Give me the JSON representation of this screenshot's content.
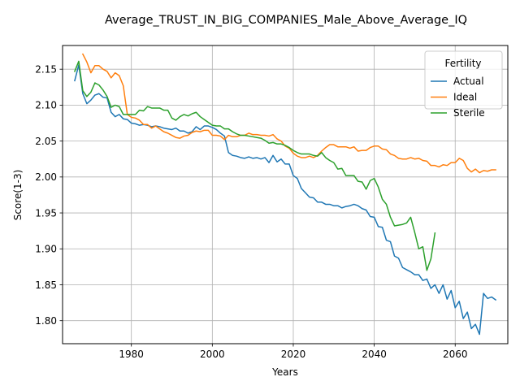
{
  "chart_data": {
    "type": "line",
    "title": "Average_TRUST_IN_BIG_COMPANIES_Male_Above_Average_IQ",
    "xlabel": "Years",
    "ylabel": "Score(1-3)",
    "xlim": [
      1963,
      2073
    ],
    "ylim": [
      1.768,
      2.183
    ],
    "xticks": [
      1980,
      2000,
      2020,
      2040,
      2060
    ],
    "yticks": [
      1.8,
      1.85,
      1.9,
      1.95,
      2.0,
      2.05,
      2.1,
      2.15
    ],
    "xtick_labels": [
      "1980",
      "2000",
      "2020",
      "2040",
      "2060"
    ],
    "ytick_labels": [
      "1.80",
      "1.85",
      "1.90",
      "1.95",
      "2.00",
      "2.05",
      "2.10",
      "2.15"
    ],
    "grid": true,
    "legend": {
      "title": "Fertility",
      "position": "top-right"
    },
    "series": [
      {
        "name": "Actual",
        "color": "#1f77b4",
        "x": [
          1966,
          1967,
          1968,
          1969,
          1970,
          1971,
          1972,
          1973,
          1974,
          1975,
          1976,
          1977,
          1978,
          1979,
          1980,
          1981,
          1982,
          1983,
          1984,
          1985,
          1986,
          1987,
          1988,
          1989,
          1990,
          1991,
          1992,
          1993,
          1994,
          1995,
          1996,
          1997,
          1998,
          1999,
          2000,
          2001,
          2002,
          2003,
          2004,
          2005,
          2006,
          2007,
          2008,
          2009,
          2010,
          2011,
          2012,
          2013,
          2014,
          2015,
          2016,
          2017,
          2018,
          2019,
          2020,
          2021,
          2022,
          2023,
          2024,
          2025,
          2026,
          2027,
          2028,
          2029,
          2030,
          2031,
          2032,
          2033,
          2034,
          2035,
          2036,
          2037,
          2038,
          2039,
          2040,
          2041,
          2042,
          2043,
          2044,
          2045,
          2046,
          2047,
          2048,
          2049,
          2050,
          2051,
          2052,
          2053,
          2054,
          2055,
          2056,
          2057,
          2058,
          2059,
          2060,
          2061,
          2062,
          2063,
          2064,
          2065,
          2066,
          2067,
          2068,
          2069,
          2070
        ],
        "y": [
          2.134,
          2.156,
          2.116,
          2.102,
          2.107,
          2.114,
          2.116,
          2.111,
          2.11,
          2.09,
          2.084,
          2.087,
          2.081,
          2.08,
          2.075,
          2.074,
          2.072,
          2.073,
          2.072,
          2.07,
          2.071,
          2.07,
          2.068,
          2.067,
          2.066,
          2.068,
          2.064,
          2.064,
          2.061,
          2.063,
          2.07,
          2.066,
          2.071,
          2.071,
          2.069,
          2.066,
          2.061,
          2.057,
          2.034,
          2.03,
          2.029,
          2.027,
          2.026,
          2.028,
          2.026,
          2.027,
          2.025,
          2.027,
          2.02,
          2.03,
          2.021,
          2.025,
          2.018,
          2.018,
          2.002,
          1.998,
          1.984,
          1.978,
          1.972,
          1.971,
          1.965,
          1.965,
          1.962,
          1.962,
          1.96,
          1.96,
          1.957,
          1.959,
          1.96,
          1.962,
          1.96,
          1.956,
          1.954,
          1.945,
          1.944,
          1.931,
          1.93,
          1.912,
          1.91,
          1.89,
          1.887,
          1.874,
          1.871,
          1.868,
          1.864,
          1.864,
          1.856,
          1.858,
          1.845,
          1.85,
          1.838,
          1.85,
          1.83,
          1.842,
          1.818,
          1.827,
          1.803,
          1.812,
          1.789,
          1.795,
          1.781,
          1.838,
          1.831,
          1.833,
          1.829
        ]
      },
      {
        "name": "Ideal",
        "color": "#ff7f0e",
        "x": [
          1968,
          1969,
          1970,
          1971,
          1972,
          1973,
          1974,
          1975,
          1976,
          1977,
          1978,
          1979,
          1980,
          1981,
          1982,
          1983,
          1984,
          1985,
          1986,
          1987,
          1988,
          1989,
          1990,
          1991,
          1992,
          1993,
          1994,
          1995,
          1996,
          1997,
          1998,
          1999,
          2000,
          2001,
          2002,
          2003,
          2004,
          2005,
          2006,
          2007,
          2008,
          2009,
          2010,
          2011,
          2012,
          2013,
          2014,
          2015,
          2016,
          2017,
          2018,
          2019,
          2020,
          2021,
          2022,
          2023,
          2024,
          2025,
          2026,
          2027,
          2028,
          2029,
          2030,
          2031,
          2032,
          2033,
          2034,
          2035,
          2036,
          2037,
          2038,
          2039,
          2040,
          2041,
          2042,
          2043,
          2044,
          2045,
          2046,
          2047,
          2048,
          2049,
          2050,
          2051,
          2052,
          2053,
          2054,
          2055,
          2056,
          2057,
          2058,
          2059,
          2060,
          2061,
          2062,
          2063,
          2064,
          2065,
          2066,
          2067,
          2068,
          2069,
          2070
        ],
        "y": [
          2.171,
          2.16,
          2.145,
          2.155,
          2.155,
          2.15,
          2.147,
          2.138,
          2.145,
          2.141,
          2.127,
          2.087,
          2.083,
          2.082,
          2.079,
          2.073,
          2.073,
          2.068,
          2.071,
          2.067,
          2.063,
          2.061,
          2.058,
          2.055,
          2.054,
          2.057,
          2.058,
          2.062,
          2.064,
          2.063,
          2.065,
          2.065,
          2.058,
          2.058,
          2.057,
          2.052,
          2.058,
          2.056,
          2.056,
          2.058,
          2.058,
          2.061,
          2.059,
          2.059,
          2.058,
          2.058,
          2.057,
          2.059,
          2.053,
          2.05,
          2.043,
          2.04,
          2.033,
          2.029,
          2.027,
          2.027,
          2.029,
          2.027,
          2.03,
          2.036,
          2.041,
          2.045,
          2.045,
          2.042,
          2.042,
          2.042,
          2.04,
          2.042,
          2.036,
          2.037,
          2.037,
          2.041,
          2.043,
          2.043,
          2.039,
          2.038,
          2.032,
          2.03,
          2.026,
          2.025,
          2.025,
          2.027,
          2.025,
          2.026,
          2.023,
          2.022,
          2.016,
          2.016,
          2.014,
          2.017,
          2.016,
          2.02,
          2.02,
          2.026,
          2.023,
          2.012,
          2.007,
          2.011,
          2.006,
          2.009,
          2.008,
          2.01,
          2.01
        ]
      },
      {
        "name": "Sterile",
        "color": "#2ca02c",
        "x": [
          1966,
          1967,
          1968,
          1969,
          1970,
          1971,
          1972,
          1973,
          1974,
          1975,
          1976,
          1977,
          1978,
          1979,
          1980,
          1981,
          1982,
          1983,
          1984,
          1985,
          1986,
          1987,
          1988,
          1989,
          1990,
          1991,
          1992,
          1993,
          1994,
          1995,
          1996,
          1997,
          1998,
          1999,
          2000,
          2001,
          2002,
          2003,
          2004,
          2005,
          2006,
          2007,
          2008,
          2009,
          2010,
          2011,
          2012,
          2013,
          2014,
          2015,
          2016,
          2017,
          2018,
          2019,
          2020,
          2021,
          2022,
          2023,
          2024,
          2025,
          2026,
          2027,
          2028,
          2029,
          2030,
          2031,
          2032,
          2033,
          2034,
          2035,
          2036,
          2037,
          2038,
          2039,
          2040,
          2041,
          2042,
          2043,
          2044,
          2045,
          2046,
          2047,
          2048,
          2049,
          2050,
          2051,
          2052,
          2053,
          2054,
          2055
        ],
        "y": [
          2.147,
          2.161,
          2.12,
          2.112,
          2.118,
          2.131,
          2.128,
          2.121,
          2.112,
          2.097,
          2.1,
          2.098,
          2.087,
          2.087,
          2.087,
          2.087,
          2.093,
          2.092,
          2.098,
          2.096,
          2.096,
          2.096,
          2.093,
          2.093,
          2.082,
          2.079,
          2.084,
          2.087,
          2.085,
          2.088,
          2.09,
          2.084,
          2.08,
          2.076,
          2.072,
          2.071,
          2.071,
          2.067,
          2.067,
          2.063,
          2.06,
          2.058,
          2.058,
          2.057,
          2.056,
          2.055,
          2.054,
          2.051,
          2.047,
          2.048,
          2.046,
          2.046,
          2.044,
          2.041,
          2.037,
          2.034,
          2.032,
          2.032,
          2.032,
          2.03,
          2.029,
          2.034,
          2.027,
          2.023,
          2.02,
          2.011,
          2.012,
          2.002,
          2.002,
          2.002,
          1.994,
          1.993,
          1.983,
          1.995,
          1.998,
          1.986,
          1.969,
          1.962,
          1.944,
          1.932,
          1.933,
          1.934,
          1.936,
          1.944,
          1.923,
          1.9,
          1.903,
          1.87,
          1.886,
          1.922
        ]
      }
    ]
  }
}
